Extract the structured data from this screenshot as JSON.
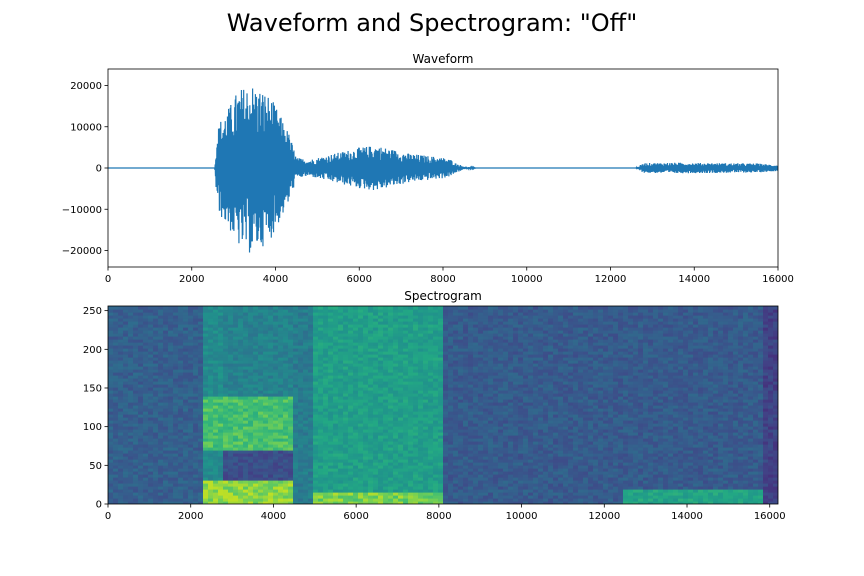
{
  "figure": {
    "suptitle": "Waveform and Spectrogram: \"Off\""
  },
  "colors": {
    "line": "#1f77b4",
    "axes": "#000000",
    "background": "#ffffff",
    "colormap": "viridis"
  },
  "chart_data": [
    {
      "type": "line",
      "title": "Waveform",
      "xlabel": "",
      "ylabel": "",
      "xlim": [
        0,
        16000
      ],
      "ylim": [
        -24000,
        24000
      ],
      "xticks": [
        0,
        2000,
        4000,
        6000,
        8000,
        10000,
        12000,
        14000,
        16000
      ],
      "yticks": [
        -20000,
        -10000,
        0,
        10000,
        20000
      ],
      "xtick_labels": [
        "0",
        "2000",
        "4000",
        "6000",
        "8000",
        "10000",
        "12000",
        "14000",
        "16000"
      ],
      "ytick_labels": [
        "−20000",
        "−10000",
        "0",
        "10000",
        "20000"
      ],
      "grid": false,
      "series": [
        {
          "envelope": {
            "x": [
              0,
              2550,
              2600,
              2700,
              2900,
              3100,
              3300,
              3400,
              3500,
              3700,
              3900,
              4100,
              4300,
              4400,
              4500,
              4800,
              5200,
              5600,
              6000,
              6400,
              6800,
              7200,
              7600,
              8000,
              8200,
              8300,
              8500,
              8800,
              12600,
              12800,
              13500,
              14500,
              15500,
              16000
            ],
            "amplitude": [
              0,
              0,
              9000,
              12000,
              15000,
              19000,
              20000,
              21000,
              20000,
              19000,
              17000,
              13000,
              9000,
              6000,
              2500,
              2000,
              3000,
              4000,
              5000,
              5500,
              4500,
              3500,
              3000,
              2500,
              2000,
              1200,
              400,
              0,
              0,
              1200,
              1300,
              1200,
              1100,
              700
            ]
          }
        }
      ]
    },
    {
      "type": "heatmap",
      "title": "Spectrogram",
      "xlabel": "",
      "ylabel": "",
      "xlim": [
        0,
        16200
      ],
      "ylim": [
        0,
        256
      ],
      "xticks": [
        0,
        2000,
        4000,
        6000,
        8000,
        10000,
        12000,
        14000,
        16000
      ],
      "yticks": [
        0,
        50,
        100,
        150,
        200,
        250
      ],
      "xtick_labels": [
        "0",
        "2000",
        "4000",
        "6000",
        "8000",
        "10000",
        "12000",
        "14000",
        "16000"
      ],
      "ytick_labels": [
        "0",
        "50",
        "100",
        "150",
        "200",
        "250"
      ],
      "colormap": "viridis",
      "energy_regions": [
        {
          "x_range": [
            0,
            2300
          ],
          "y_range": [
            0,
            256
          ],
          "level": 0.38
        },
        {
          "x_range": [
            2300,
            2800
          ],
          "y_range": [
            0,
            256
          ],
          "level": 0.6
        },
        {
          "x_range": [
            2300,
            4500
          ],
          "y_range": [
            0,
            30
          ],
          "level": 0.95
        },
        {
          "x_range": [
            2300,
            4500
          ],
          "y_range": [
            70,
            140
          ],
          "level": 0.85
        },
        {
          "x_range": [
            2800,
            4500
          ],
          "y_range": [
            140,
            256
          ],
          "level": 0.55
        },
        {
          "x_range": [
            4500,
            5000
          ],
          "y_range": [
            0,
            256
          ],
          "level": 0.52
        },
        {
          "x_range": [
            5000,
            8100
          ],
          "y_range": [
            0,
            256
          ],
          "level": 0.7
        },
        {
          "x_range": [
            5000,
            8600
          ],
          "y_range": [
            0,
            15
          ],
          "level": 0.92
        },
        {
          "x_range": [
            8100,
            16200
          ],
          "y_range": [
            0,
            256
          ],
          "level": 0.36
        },
        {
          "x_range": [
            12500,
            16000
          ],
          "y_range": [
            0,
            20
          ],
          "level": 0.72
        },
        {
          "x_range": [
            15800,
            16200
          ],
          "y_range": [
            0,
            256
          ],
          "level": 0.25
        }
      ]
    }
  ]
}
